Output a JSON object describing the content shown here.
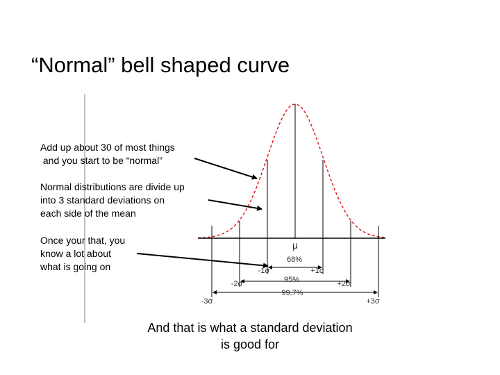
{
  "title": "“Normal” bell shaped curve",
  "notes": [
    {
      "lines": [
        "Add up about 30 of most things",
        " and you start to be “normal”"
      ]
    },
    {
      "lines": [
        "Normal distributions are divide up",
        "into 3 standard deviations on",
        "each side of the mean"
      ]
    },
    {
      "lines": [
        "Once your that, you",
        "know a lot about",
        "what is going on"
      ]
    }
  ],
  "diagram": {
    "mean": "μ",
    "labels": [
      "68%",
      "-1σ",
      "+1σ",
      "-2σ",
      "95%",
      "+2σ",
      "99.7%",
      "-3σ",
      "+3σ"
    ]
  },
  "caption": {
    "lines": [
      "And that is what a standard deviation",
      "is good for"
    ]
  }
}
